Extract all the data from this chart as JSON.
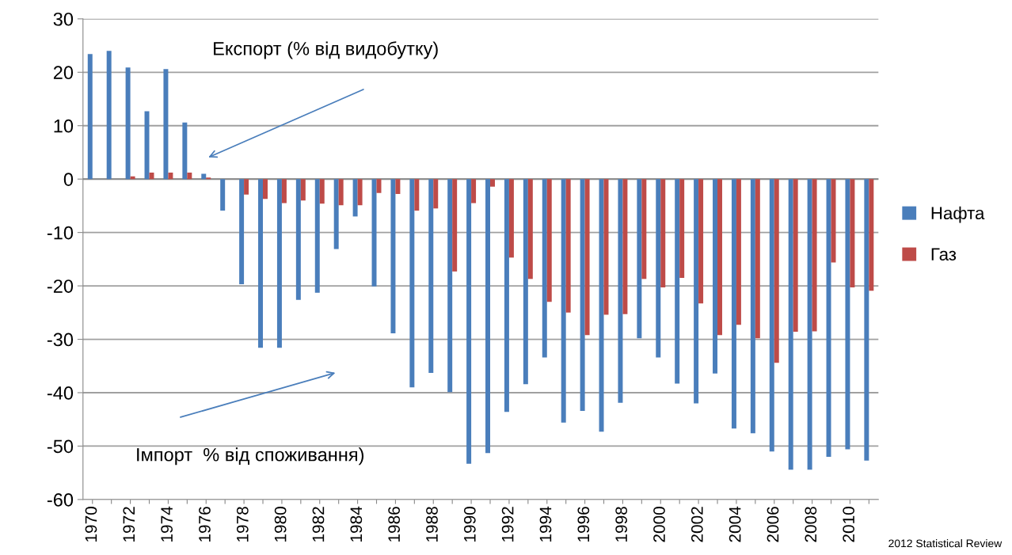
{
  "chart_data": {
    "type": "bar",
    "categories": [
      "1970",
      null,
      "1972",
      null,
      "1974",
      null,
      "1976",
      null,
      "1978",
      null,
      "1980",
      null,
      "1982",
      null,
      "1984",
      null,
      "1986",
      null,
      "1988",
      null,
      "1990",
      null,
      "1992",
      null,
      "1994",
      null,
      "1996",
      null,
      "1998",
      null,
      "2000",
      null,
      "2002",
      null,
      "2004",
      null,
      "2006",
      null,
      "2008",
      null,
      "2010",
      null
    ],
    "series": [
      {
        "name": "Нафта",
        "color": "#4a7ebb",
        "values": [
          23.4,
          24,
          20.9,
          12.7,
          20.6,
          10.6,
          1,
          -5.9,
          -19.7,
          -31.6,
          -31.6,
          -22.6,
          -21.3,
          -13.1,
          -7,
          -20.1,
          -28.9,
          -39,
          -36.3,
          -39.9,
          -53.3,
          -51.3,
          -43.6,
          -38.4,
          -33.4,
          -45.6,
          -43.4,
          -47.3,
          -41.9,
          -29.8,
          -33.4,
          -38.3,
          -42,
          -36.4,
          -46.7,
          -47.6,
          -51,
          -54.4,
          -54.4,
          -52,
          -50.6,
          -52.7
        ]
      },
      {
        "name": "Газ",
        "color": "#be4b48",
        "values": [
          0,
          0,
          0.5,
          1.2,
          1.2,
          1.2,
          0.3,
          0,
          -2.9,
          -3.7,
          -4.5,
          -4,
          -4.6,
          -4.9,
          -4.9,
          -2.6,
          -2.8,
          -5.9,
          -5.5,
          -17.3,
          -4.5,
          -1.4,
          -14.7,
          -18.7,
          -23,
          -25,
          -29.2,
          -25.4,
          -25.3,
          -18.7,
          -20.3,
          -18.5,
          -23.3,
          -29.2,
          -27.3,
          -29.8,
          -34.4,
          -28.6,
          -28.5,
          -15.6,
          -20.3,
          -20.9
        ]
      }
    ],
    "ylim": [
      -60,
      30
    ],
    "yticks": [
      -60,
      -50,
      -40,
      -30,
      -20,
      -10,
      0,
      10,
      20,
      30
    ],
    "grid": "y",
    "legend": "right",
    "annotations": [
      "Експорт (% від видобутку)",
      "Імпорт  % від споживання)",
      "2012 Statistical Review"
    ]
  }
}
